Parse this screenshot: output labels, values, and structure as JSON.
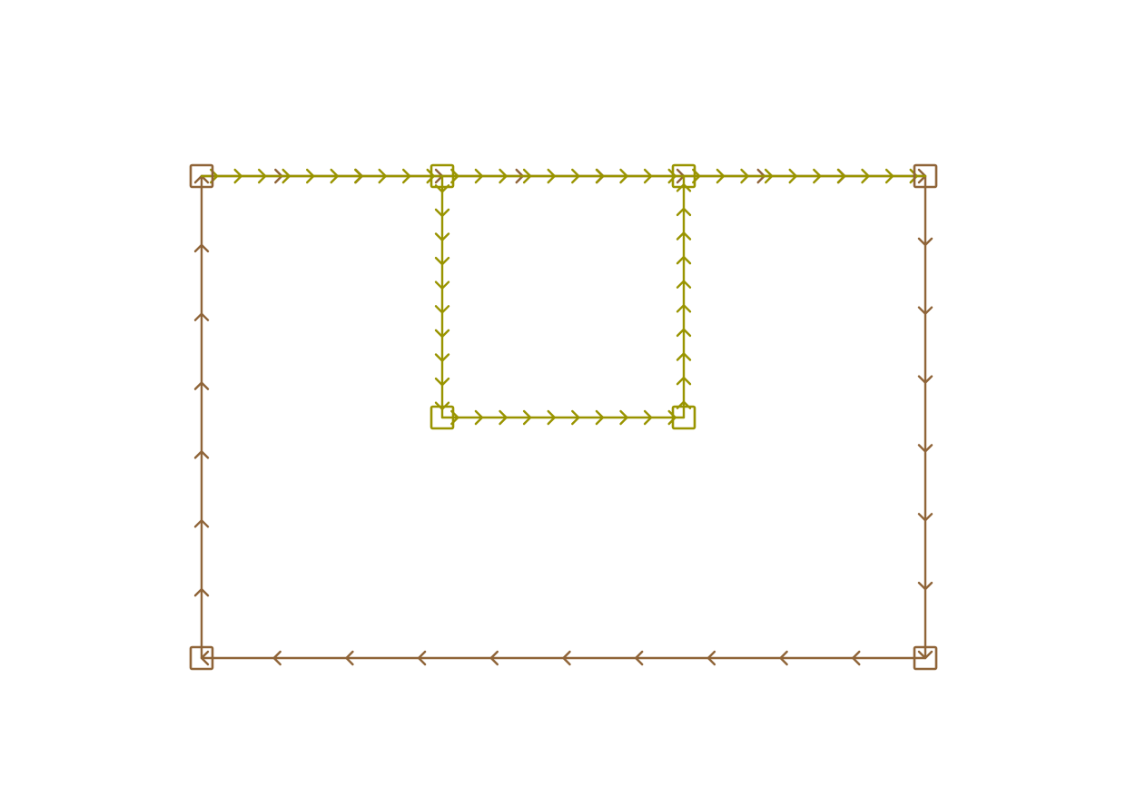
{
  "diagram": {
    "colors": {
      "outer": "#8f6438",
      "inner": "#999400",
      "background": "#ffffff"
    },
    "nodes": [
      {
        "id": "outer-top-left",
        "loop": "outer"
      },
      {
        "id": "inner-top-left",
        "loop": "inner"
      },
      {
        "id": "inner-top-right",
        "loop": "inner"
      },
      {
        "id": "outer-top-right",
        "loop": "outer"
      },
      {
        "id": "outer-bottom-right",
        "loop": "outer"
      },
      {
        "id": "outer-bottom-left",
        "loop": "outer"
      },
      {
        "id": "inner-bottom-left",
        "loop": "inner"
      },
      {
        "id": "inner-bottom-right",
        "loop": "inner"
      }
    ],
    "edges": [
      {
        "id": "outer-top-a",
        "from": "outer-top-left",
        "to": "inner-top-left",
        "loop": "outer"
      },
      {
        "id": "inner-top-a",
        "from": "outer-top-left",
        "to": "inner-top-left",
        "loop": "inner"
      },
      {
        "id": "outer-top-b",
        "from": "inner-top-left",
        "to": "inner-top-right",
        "loop": "outer"
      },
      {
        "id": "inner-top-b",
        "from": "inner-top-left",
        "to": "inner-top-right",
        "loop": "inner"
      },
      {
        "id": "outer-top-c",
        "from": "inner-top-right",
        "to": "outer-top-right",
        "loop": "outer"
      },
      {
        "id": "inner-top-c",
        "from": "inner-top-right",
        "to": "outer-top-right",
        "loop": "inner"
      },
      {
        "id": "outer-right",
        "from": "outer-top-right",
        "to": "outer-bottom-right",
        "loop": "outer"
      },
      {
        "id": "outer-bottom",
        "from": "outer-bottom-right",
        "to": "outer-bottom-left",
        "loop": "outer"
      },
      {
        "id": "outer-left",
        "from": "outer-bottom-left",
        "to": "outer-top-left",
        "loop": "outer"
      },
      {
        "id": "inner-left",
        "from": "inner-top-left",
        "to": "inner-bottom-left",
        "loop": "inner"
      },
      {
        "id": "inner-bottom",
        "from": "inner-bottom-left",
        "to": "inner-bottom-right",
        "loop": "inner"
      },
      {
        "id": "inner-right",
        "from": "inner-bottom-right",
        "to": "inner-top-right",
        "loop": "inner"
      }
    ]
  }
}
